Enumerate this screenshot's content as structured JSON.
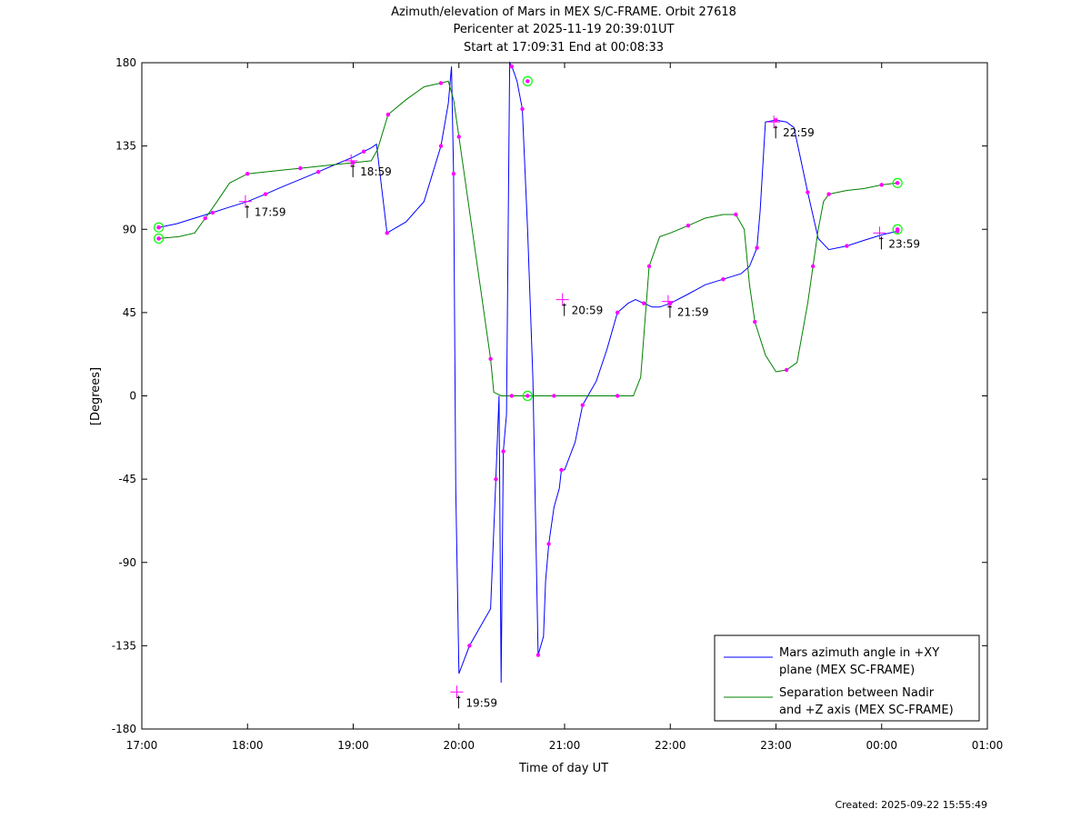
{
  "chart_data": {
    "type": "line",
    "title": [
      "Azimuth/elevation of Mars in MEX S/C-FRAME.  Orbit 27618",
      "Pericenter at 2025-11-19 20:39:01UT",
      "Start at 17:09:31 End at 00:08:33"
    ],
    "xlabel": "Time of day UT",
    "ylabel": "[Degrees]",
    "xlim": [
      17.0,
      25.0
    ],
    "ylim": [
      -180,
      180
    ],
    "x_ticks": [
      {
        "v": 17.0,
        "label": "17:00"
      },
      {
        "v": 18.0,
        "label": "18:00"
      },
      {
        "v": 19.0,
        "label": "19:00"
      },
      {
        "v": 20.0,
        "label": "20:00"
      },
      {
        "v": 21.0,
        "label": "21:00"
      },
      {
        "v": 22.0,
        "label": "22:00"
      },
      {
        "v": 23.0,
        "label": "23:00"
      },
      {
        "v": 24.0,
        "label": "00:00"
      },
      {
        "v": 25.0,
        "label": "01:00"
      }
    ],
    "y_ticks": [
      180,
      135,
      90,
      45,
      0,
      -45,
      -90,
      -135,
      -180
    ],
    "grid": false,
    "legend_position": "bottom-right",
    "series": [
      {
        "name": "Mars azimuth angle in +XY plane (MEX SC-FRAME)",
        "legend_lines": [
          "Mars azimuth angle in +XY",
          "plane (MEX SC-FRAME)"
        ],
        "color": "#0000ff",
        "x": [
          17.16,
          17.33,
          17.5,
          17.67,
          17.83,
          18.0,
          18.17,
          18.33,
          18.5,
          18.67,
          18.83,
          19.0,
          19.1,
          19.17,
          19.22,
          19.32,
          19.5,
          19.67,
          19.83,
          19.9,
          19.93,
          19.95,
          19.97,
          20.0,
          20.1,
          20.2,
          20.3,
          20.35,
          20.38,
          20.4,
          20.42,
          20.45,
          20.48,
          20.5,
          20.52,
          20.55,
          20.6,
          20.65,
          20.7,
          20.75,
          20.8,
          20.82,
          20.85,
          20.9,
          20.95,
          20.97,
          21.0,
          21.1,
          21.17,
          21.3,
          21.4,
          21.5,
          21.6,
          21.67,
          21.75,
          21.83,
          21.9,
          22.0,
          22.17,
          22.33,
          22.5,
          22.67,
          22.75,
          22.82,
          22.85,
          22.9,
          23.0,
          23.1,
          23.17,
          23.3,
          23.4,
          23.5,
          23.67,
          23.83,
          24.0,
          24.15
        ],
        "y": [
          91,
          93,
          96,
          99,
          102,
          105,
          109,
          113,
          117,
          121,
          125,
          129,
          132,
          134,
          136,
          88,
          94,
          105,
          135,
          158,
          178,
          120,
          -50,
          -150,
          -135,
          -125,
          -115,
          -45,
          0,
          -155,
          -30,
          -10,
          180,
          178,
          175,
          170,
          155,
          90,
          10,
          -140,
          -130,
          -100,
          -80,
          -60,
          -50,
          -40,
          -40,
          -25,
          -5,
          8,
          25,
          45,
          50,
          52,
          50,
          48,
          48,
          50,
          55,
          60,
          63,
          66,
          70,
          80,
          100,
          148,
          149,
          148,
          145,
          110,
          85,
          79,
          81,
          84,
          87,
          89
        ]
      },
      {
        "name": "Separation between Nadir and +Z axis (MEX SC-FRAME)",
        "legend_lines": [
          "Separation between Nadir",
          "and +Z axis (MEX SC-FRAME)"
        ],
        "color": "#008000",
        "x": [
          17.16,
          17.35,
          17.5,
          17.6,
          17.7,
          17.83,
          18.0,
          18.17,
          18.33,
          18.5,
          18.67,
          18.83,
          19.0,
          19.17,
          19.23,
          19.33,
          19.5,
          19.67,
          19.83,
          19.9,
          19.95,
          20.0,
          20.1,
          20.2,
          20.3,
          20.33,
          20.4,
          20.5,
          20.65,
          20.7,
          20.9,
          21.0,
          21.3,
          21.5,
          21.65,
          21.72,
          21.8,
          21.9,
          22.0,
          22.17,
          22.33,
          22.5,
          22.62,
          22.7,
          22.75,
          22.8,
          22.9,
          23.0,
          23.1,
          23.2,
          23.3,
          23.35,
          23.4,
          23.45,
          23.5,
          23.67,
          23.83,
          24.0,
          24.15
        ],
        "y": [
          85,
          86,
          88,
          96,
          104,
          115,
          120,
          121,
          122,
          123,
          124,
          125,
          126,
          127,
          133,
          152,
          160,
          167,
          169,
          170,
          160,
          140,
          100,
          60,
          20,
          2,
          0,
          0,
          0,
          0,
          0,
          0,
          0,
          0,
          0,
          10,
          70,
          86,
          88,
          92,
          96,
          98,
          98,
          90,
          60,
          40,
          22,
          13,
          14,
          18,
          50,
          70,
          90,
          105,
          109,
          111,
          112,
          114,
          115
        ]
      }
    ],
    "time_annotations": [
      {
        "x": 17.98,
        "y": 105,
        "label": "17:59"
      },
      {
        "x": 18.98,
        "y": 127,
        "label": "18:59"
      },
      {
        "x": 19.98,
        "y": -160,
        "label": "19:59"
      },
      {
        "x": 20.98,
        "y": 52,
        "label": "20:59"
      },
      {
        "x": 21.98,
        "y": 51,
        "label": "21:59"
      },
      {
        "x": 22.98,
        "y": 148,
        "label": "22:59"
      },
      {
        "x": 23.98,
        "y": 88,
        "label": "23:59"
      }
    ],
    "circle_markers": [
      {
        "x": 17.16,
        "y": 91
      },
      {
        "x": 17.16,
        "y": 85
      },
      {
        "x": 20.65,
        "y": 170
      },
      {
        "x": 20.65,
        "y": 0
      },
      {
        "x": 24.15,
        "y": 115
      },
      {
        "x": 24.15,
        "y": 90
      }
    ]
  },
  "footer": {
    "created": "Created: 2025-09-22 15:55:49"
  }
}
